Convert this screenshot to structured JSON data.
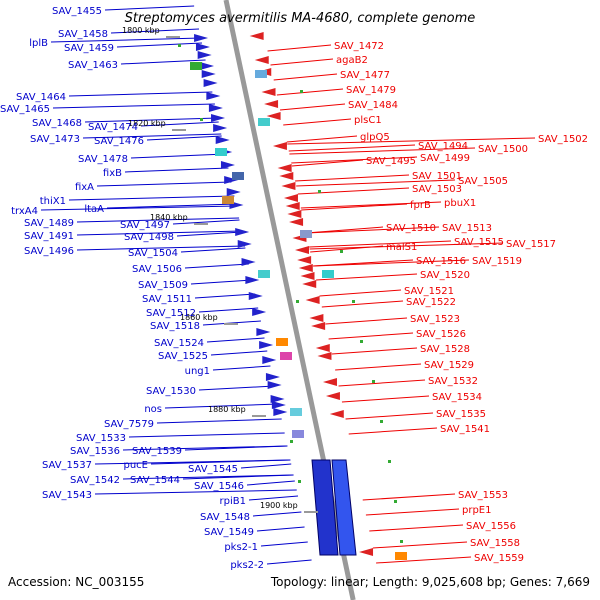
{
  "title": "Streptomyces avermitilis MA-4680, complete genome",
  "accession": "Accession: NC_003155",
  "topology": "Topology: linear; Length: 9,025,608 bp; Genes: 7,669",
  "colors": {
    "forward": "#2222cc",
    "reverse": "#dd2222",
    "minus_label": "#0000cc",
    "plus_label": "#ee0000",
    "axis": "#999999"
  },
  "kbp_marks": [
    "1800 kbp",
    "1820 kbp",
    "1840 kbp",
    "1860 kbp",
    "1880 kbp",
    "1900 kbp"
  ],
  "left_labels": [
    "SAV_1455",
    "lplB",
    "SAV_1458",
    "SAV_1459",
    "SAV_1463",
    "SAV_1464",
    "SAV_1465",
    "SAV_1468",
    "SAV_1474",
    "SAV_1473",
    "SAV_1476",
    "SAV_1478",
    "fixB",
    "fixA",
    "thiX1",
    "trxA4",
    "ltaA",
    "SAV_1489",
    "SAV_1491",
    "SAV_1497",
    "SAV_1498",
    "SAV_1496",
    "SAV_1504",
    "SAV_1506",
    "SAV_1509",
    "SAV_1511",
    "SAV_1512",
    "SAV_1518",
    "SAV_1524",
    "SAV_1525",
    "ung1",
    "SAV_1530",
    "nos",
    "SAV_7579",
    "SAV_1533",
    "SAV_1536",
    "SAV_1539",
    "SAV_1537",
    "pucE",
    "SAV_1545",
    "SAV_1542",
    "SAV_1544",
    "SAV_1546",
    "SAV_1543",
    "rpiB1",
    "SAV_1548",
    "SAV_1549",
    "pks2-1",
    "pks2-2"
  ],
  "right_labels": [
    "SAV_1472",
    "agaB2",
    "SAV_1477",
    "SAV_1479",
    "SAV_1484",
    "plsC1",
    "glpQ5",
    "SAV_1494",
    "SAV_1502",
    "SAV_1500",
    "SAV_1495",
    "SAV_1499",
    "SAV_1501",
    "SAV_1505",
    "SAV_1503",
    "fprB",
    "pbuX1",
    "SAV_1510",
    "SAV_1513",
    "malS1",
    "SAV_1515",
    "SAV_1517",
    "SAV_1516",
    "SAV_1519",
    "SAV_1520",
    "SAV_1521",
    "SAV_1522",
    "SAV_1523",
    "SAV_1526",
    "SAV_1528",
    "SAV_1529",
    "SAV_1532",
    "SAV_1534",
    "SAV_1535",
    "SAV_1541",
    "SAV_1553",
    "prpE1",
    "SAV_1556",
    "SAV_1558",
    "SAV_1559"
  ]
}
